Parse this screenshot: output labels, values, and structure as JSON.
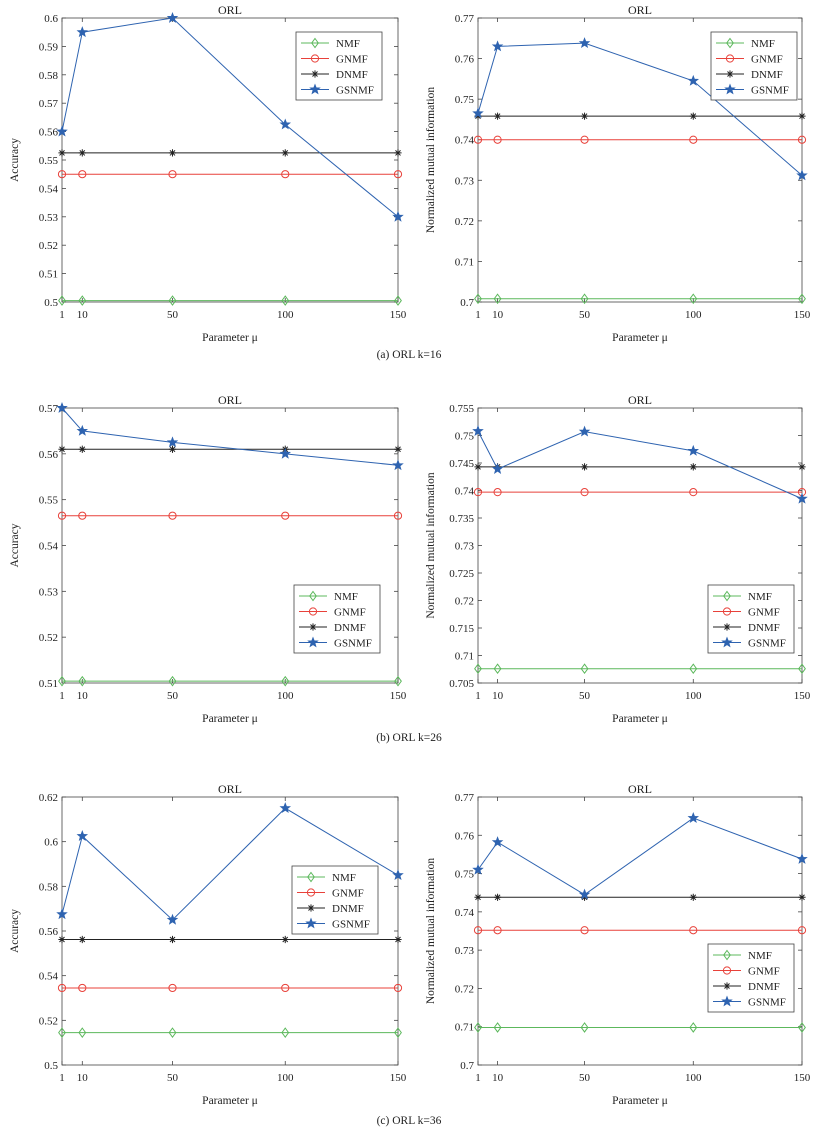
{
  "colors": {
    "NMF": "#5cb85c",
    "GNMF": "#e8413a",
    "DNMF": "#222222",
    "GSNMF": "#2e63b0"
  },
  "captions": [
    "(a) ORL k=16",
    "(b) ORL k=26",
    "(c) ORL k=36"
  ],
  "chart_data": [
    {
      "type": "line",
      "title": "ORL",
      "xlabel": "Parameter μ",
      "ylabel": "Accuracy",
      "x": [
        1,
        10,
        50,
        100,
        150
      ],
      "xticks": [
        1,
        10,
        50,
        100,
        150
      ],
      "xlim": [
        1,
        150
      ],
      "ylim": [
        0.5,
        0.6
      ],
      "yticks": [
        0.5,
        0.51,
        0.52,
        0.53,
        0.54,
        0.55,
        0.56,
        0.57,
        0.58,
        0.59,
        0.6
      ],
      "legend_position": "top-right",
      "series": [
        {
          "name": "NMF",
          "marker": "diamond",
          "values": [
            0.5005,
            0.5005,
            0.5005,
            0.5005,
            0.5005
          ]
        },
        {
          "name": "GNMF",
          "marker": "circle",
          "values": [
            0.545,
            0.545,
            0.545,
            0.545,
            0.545
          ]
        },
        {
          "name": "DNMF",
          "marker": "asterisk",
          "values": [
            0.5525,
            0.5525,
            0.5525,
            0.5525,
            0.5525
          ]
        },
        {
          "name": "GSNMF",
          "marker": "star",
          "values": [
            0.56,
            0.595,
            0.6,
            0.5625,
            0.53
          ]
        }
      ]
    },
    {
      "type": "line",
      "title": "ORL",
      "xlabel": "Parameter μ",
      "ylabel": "Normalized mutual information",
      "x": [
        1,
        10,
        50,
        100,
        150
      ],
      "xticks": [
        1,
        10,
        50,
        100,
        150
      ],
      "xlim": [
        1,
        150
      ],
      "ylim": [
        0.7,
        0.77
      ],
      "yticks": [
        0.7,
        0.71,
        0.72,
        0.73,
        0.74,
        0.75,
        0.76,
        0.77
      ],
      "legend_position": "top-right",
      "series": [
        {
          "name": "NMF",
          "marker": "diamond",
          "values": [
            0.7008,
            0.7008,
            0.7008,
            0.7008,
            0.7008
          ]
        },
        {
          "name": "GNMF",
          "marker": "circle",
          "values": [
            0.74,
            0.74,
            0.74,
            0.74,
            0.74
          ]
        },
        {
          "name": "DNMF",
          "marker": "asterisk",
          "values": [
            0.7458,
            0.7458,
            0.7458,
            0.7458,
            0.7458
          ]
        },
        {
          "name": "GSNMF",
          "marker": "star",
          "values": [
            0.7465,
            0.763,
            0.7638,
            0.7545,
            0.7312
          ]
        }
      ]
    },
    {
      "type": "line",
      "title": "ORL",
      "xlabel": "Parameter μ",
      "ylabel": "Accuracy",
      "x": [
        1,
        10,
        50,
        100,
        150
      ],
      "xticks": [
        1,
        10,
        50,
        100,
        150
      ],
      "xlim": [
        1,
        150
      ],
      "ylim": [
        0.51,
        0.57
      ],
      "yticks": [
        0.51,
        0.52,
        0.53,
        0.54,
        0.55,
        0.56,
        0.57
      ],
      "legend_position": "bottom-right",
      "series": [
        {
          "name": "NMF",
          "marker": "diamond",
          "values": [
            0.5104,
            0.5104,
            0.5104,
            0.5104,
            0.5104
          ]
        },
        {
          "name": "GNMF",
          "marker": "circle",
          "values": [
            0.5465,
            0.5465,
            0.5465,
            0.5465,
            0.5465
          ]
        },
        {
          "name": "DNMF",
          "marker": "asterisk",
          "values": [
            0.561,
            0.561,
            0.561,
            0.561,
            0.561
          ]
        },
        {
          "name": "GSNMF",
          "marker": "star",
          "values": [
            0.57,
            0.565,
            0.5625,
            0.56,
            0.5575
          ]
        }
      ]
    },
    {
      "type": "line",
      "title": "ORL",
      "xlabel": "Parameter μ",
      "ylabel": "Normalized mutual information",
      "x": [
        1,
        10,
        50,
        100,
        150
      ],
      "xticks": [
        1,
        10,
        50,
        100,
        150
      ],
      "xlim": [
        1,
        150
      ],
      "ylim": [
        0.705,
        0.755
      ],
      "yticks": [
        0.705,
        0.71,
        0.715,
        0.72,
        0.725,
        0.73,
        0.735,
        0.74,
        0.745,
        0.75,
        0.755
      ],
      "legend_position": "bottom-right",
      "series": [
        {
          "name": "NMF",
          "marker": "diamond",
          "values": [
            0.7076,
            0.7076,
            0.7076,
            0.7076,
            0.7076
          ]
        },
        {
          "name": "GNMF",
          "marker": "circle",
          "values": [
            0.7397,
            0.7397,
            0.7397,
            0.7397,
            0.7397
          ]
        },
        {
          "name": "DNMF",
          "marker": "asterisk",
          "values": [
            0.7443,
            0.7443,
            0.7443,
            0.7443,
            0.7443
          ]
        },
        {
          "name": "GSNMF",
          "marker": "star",
          "values": [
            0.7508,
            0.7439,
            0.7507,
            0.7472,
            0.7385
          ]
        }
      ]
    },
    {
      "type": "line",
      "title": "ORL",
      "xlabel": "Parameter μ",
      "ylabel": "Accuracy",
      "x": [
        1,
        10,
        50,
        100,
        150
      ],
      "xticks": [
        1,
        10,
        50,
        100,
        150
      ],
      "xlim": [
        1,
        150
      ],
      "ylim": [
        0.5,
        0.62
      ],
      "yticks": [
        0.5,
        0.52,
        0.54,
        0.56,
        0.58,
        0.6,
        0.62
      ],
      "legend_position": "center-right",
      "series": [
        {
          "name": "NMF",
          "marker": "diamond",
          "values": [
            0.5145,
            0.5145,
            0.5145,
            0.5145,
            0.5145
          ]
        },
        {
          "name": "GNMF",
          "marker": "circle",
          "values": [
            0.5345,
            0.5345,
            0.5345,
            0.5345,
            0.5345
          ]
        },
        {
          "name": "DNMF",
          "marker": "asterisk",
          "values": [
            0.5562,
            0.5562,
            0.5562,
            0.5562,
            0.5562
          ]
        },
        {
          "name": "GSNMF",
          "marker": "star",
          "values": [
            0.5675,
            0.6025,
            0.565,
            0.615,
            0.585
          ]
        }
      ]
    },
    {
      "type": "line",
      "title": "ORL",
      "xlabel": "Parameter μ",
      "ylabel": "Normalized mutual information",
      "x": [
        1,
        10,
        50,
        100,
        150
      ],
      "xticks": [
        1,
        10,
        50,
        100,
        150
      ],
      "xlim": [
        1,
        150
      ],
      "ylim": [
        0.7,
        0.77
      ],
      "yticks": [
        0.7,
        0.71,
        0.72,
        0.73,
        0.74,
        0.75,
        0.76,
        0.77
      ],
      "legend_position": "lower-right",
      "series": [
        {
          "name": "NMF",
          "marker": "diamond",
          "values": [
            0.7098,
            0.7098,
            0.7098,
            0.7098,
            0.7098
          ]
        },
        {
          "name": "GNMF",
          "marker": "circle",
          "values": [
            0.7352,
            0.7352,
            0.7352,
            0.7352,
            0.7352
          ]
        },
        {
          "name": "DNMF",
          "marker": "asterisk",
          "values": [
            0.7438,
            0.7438,
            0.7438,
            0.7438,
            0.7438
          ]
        },
        {
          "name": "GSNMF",
          "marker": "star",
          "values": [
            0.751,
            0.7582,
            0.7445,
            0.7645,
            0.7538
          ]
        }
      ]
    }
  ]
}
